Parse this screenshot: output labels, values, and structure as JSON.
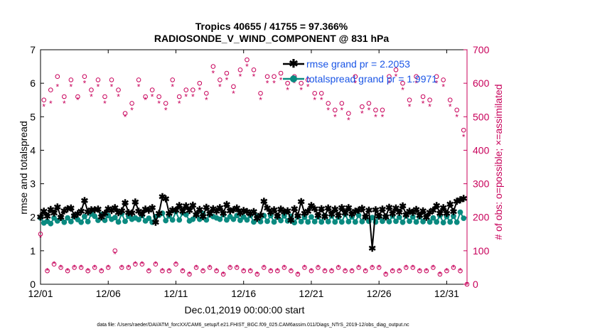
{
  "chart_data": {
    "type": "line",
    "title_line1": "Tropics 40655 / 41755 = 97.366%",
    "title_line2": "RADIOSONDE_V_WIND_COMPONENT @ 831 hPa",
    "xlabel": "Dec.01,2019 00:00:00 start",
    "ylabel_left": "rmse and totalspread",
    "ylabel_right": "# of obs: o=possible; ×=assimilated",
    "footnote": "data file: /Users/raeder/DAI/ATM_forcXX/CAM6_setup/f.e21.FHIST_BGC.f09_025.CAM6assim.011/Diags_NTrS_2019-12/obs_diag_output.nc",
    "xlim": [
      0.0,
      31.5
    ],
    "ylim_left": [
      0,
      7
    ],
    "ylim_right": [
      0,
      700
    ],
    "xticks": [
      0,
      5,
      10,
      15,
      20,
      25,
      30
    ],
    "xtick_labels": [
      "12/01",
      "12/06",
      "12/11",
      "12/16",
      "12/21",
      "12/26",
      "12/31"
    ],
    "yticks_left": [
      0,
      1,
      2,
      3,
      4,
      5,
      6,
      7
    ],
    "yticks_right": [
      0,
      100,
      200,
      300,
      400,
      500,
      600,
      700
    ],
    "x_step_days": 0.25,
    "legend": [
      {
        "label": "rmse grand pr = 2.2053",
        "color": "#000000"
      },
      {
        "label": "totalspread grand pr = 1.9971",
        "color": "#0a8a80"
      }
    ],
    "series": [
      {
        "name": "rmse",
        "color": "#000000",
        "marker": "*",
        "values": [
          2.02,
          2.19,
          2.04,
          2.24,
          2.13,
          2.31,
          2.0,
          2.2,
          2.26,
          2.28,
          2.05,
          2.11,
          2.18,
          2.5,
          2.16,
          2.23,
          2.23,
          2.25,
          2.01,
          2.12,
          2.26,
          2.21,
          2.29,
          2.14,
          2.2,
          2.44,
          2.14,
          2.13,
          2.46,
          2.19,
          2.1,
          2.25,
          2.22,
          2.29,
          1.86,
          2.12,
          2.62,
          2.56,
          2.12,
          2.23,
          2.22,
          2.35,
          2.19,
          2.34,
          2.21,
          2.37,
          2.08,
          2.24,
          2.03,
          2.3,
          2.11,
          2.26,
          2.18,
          2.29,
          2.12,
          2.39,
          2.2,
          2.23,
          2.28,
          2.13,
          2.21,
          2.17,
          2.11,
          2.17,
          1.97,
          2.07,
          2.48,
          2.28,
          2.15,
          2.23,
          2.04,
          2.25,
          2.16,
          2.2,
          1.92,
          2.26,
          2.05,
          2.47,
          2.12,
          2.18,
          2.35,
          2.26,
          2.06,
          2.26,
          2.03,
          2.28,
          2.1,
          2.25,
          2.06,
          2.29,
          2.13,
          2.29,
          2.1,
          2.19,
          2.22,
          2.27,
          2.02,
          2.22,
          1.08,
          2.23,
          2.04,
          2.25,
          2.01,
          2.3,
          2.11,
          2.28,
          2.15,
          2.34,
          2.08,
          2.18,
          2.15,
          2.24,
          2.06,
          2.2,
          2.0,
          2.15,
          2.22,
          2.35,
          2.12,
          2.29,
          2.12,
          2.4,
          2.17,
          2.48,
          2.52,
          2.57
        ]
      },
      {
        "name": "totalspread",
        "color": "#0a8a80",
        "marker": "o",
        "values": [
          1.98,
          1.83,
          1.88,
          1.81,
          1.98,
          1.89,
          1.97,
          1.85,
          1.98,
          1.87,
          2.05,
          1.93,
          1.85,
          2.02,
          1.87,
          2.1,
          2.03,
          1.91,
          2.08,
          1.91,
          2.05,
          1.94,
          1.99,
          1.86,
          2.11,
          1.88,
          2.03,
          1.94,
          1.98,
          1.93,
          2.05,
          1.89,
          1.97,
          1.85,
          2.02,
          2.06,
          2.12,
          1.9,
          2.04,
          1.92,
          2.17,
          1.92,
          2.13,
          2.08,
          1.89,
          1.94,
          2.08,
          1.94,
          2.11,
          1.92,
          2.07,
          2.02,
          1.98,
          1.94,
          2.08,
          1.92,
          2.02,
          1.94,
          2.05,
          1.91,
          2.01,
          1.92,
          2.05,
          1.86,
          2.03,
          1.87,
          2.05,
          1.88,
          2.05,
          1.86,
          2.01,
          1.9,
          2.04,
          1.89,
          2.03,
          1.84,
          2.02,
          1.87,
          2.0,
          1.86,
          2.01,
          1.87,
          2.01,
          1.86,
          2.05,
          1.87,
          2.04,
          1.86,
          2.0,
          1.86,
          2.09,
          1.87,
          2.01,
          1.86,
          2.06,
          1.87,
          2.02,
          1.88,
          1.99,
          1.86,
          2.02,
          1.88,
          2.03,
          1.87,
          2.04,
          1.88,
          2.0,
          1.85,
          2.04,
          1.88,
          2.01,
          1.86,
          2.01,
          1.87,
          2.03,
          1.86,
          1.98,
          1.86,
          2.05,
          1.84,
          2.02,
          1.86,
          2.03,
          1.85,
          2.15,
          1.97
        ]
      },
      {
        "name": "obs possible",
        "color": "#c8005a",
        "marker": "o",
        "axis": "right",
        "values": [
          150,
          550,
          40,
          580,
          60,
          620,
          50,
          560,
          40,
          610,
          50,
          560,
          50,
          620,
          40,
          580,
          50,
          610,
          40,
          560,
          50,
          610,
          100,
          580,
          50,
          510,
          50,
          540,
          60,
          610,
          60,
          560,
          40,
          580,
          60,
          560,
          40,
          540,
          40,
          610,
          60,
          560,
          40,
          580,
          30,
          580,
          50,
          600,
          40,
          570,
          50,
          650,
          40,
          610,
          30,
          630,
          50,
          590,
          50,
          640,
          40,
          670,
          40,
          640,
          30,
          570,
          50,
          620,
          40,
          620,
          40,
          630,
          50,
          600,
          40,
          620,
          30,
          600,
          50,
          610,
          40,
          570,
          50,
          570,
          40,
          540,
          40,
          520,
          50,
          540,
          40,
          510,
          40,
          620,
          50,
          530,
          40,
          540,
          50,
          520,
          50,
          520,
          30,
          620,
          40,
          640,
          40,
          600,
          50,
          550,
          50,
          620,
          40,
          560,
          40,
          550,
          50,
          620,
          30,
          610,
          40,
          550,
          50,
          520,
          40,
          460,
          0
        ]
      },
      {
        "name": "obs assimilated",
        "color": "#c8005a",
        "marker": "x",
        "axis": "right",
        "values": [
          140,
          530,
          40,
          540,
          60,
          590,
          50,
          540,
          40,
          590,
          50,
          550,
          50,
          600,
          40,
          560,
          50,
          590,
          40,
          540,
          50,
          590,
          90,
          560,
          50,
          500,
          50,
          520,
          60,
          590,
          60,
          550,
          40,
          560,
          60,
          540,
          40,
          520,
          40,
          590,
          60,
          540,
          40,
          560,
          30,
          560,
          50,
          580,
          40,
          550,
          50,
          630,
          40,
          590,
          30,
          610,
          50,
          570,
          50,
          620,
          40,
          650,
          40,
          620,
          30,
          550,
          50,
          600,
          40,
          600,
          40,
          610,
          50,
          580,
          40,
          600,
          30,
          580,
          50,
          590,
          40,
          550,
          50,
          550,
          40,
          520,
          40,
          500,
          50,
          520,
          40,
          490,
          40,
          600,
          50,
          510,
          40,
          520,
          50,
          500,
          50,
          500,
          30,
          600,
          40,
          620,
          40,
          580,
          50,
          530,
          50,
          600,
          40,
          540,
          40,
          530,
          50,
          600,
          30,
          590,
          40,
          530,
          50,
          500,
          40,
          440,
          0
        ]
      }
    ]
  }
}
